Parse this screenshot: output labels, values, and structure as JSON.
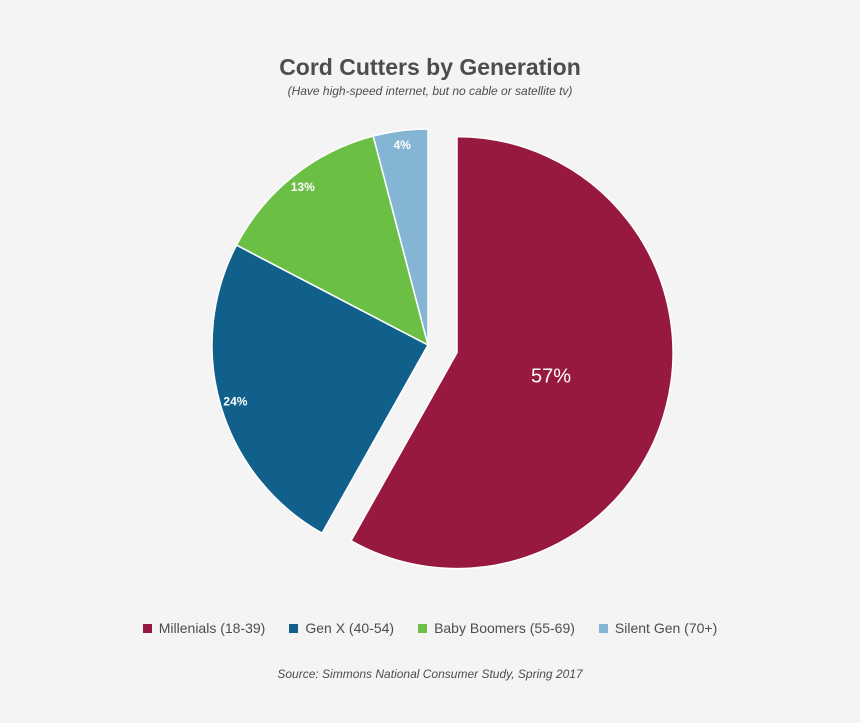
{
  "chart_data": {
    "type": "pie",
    "title": "Cord Cutters by Generation",
    "subtitle": "(Have high-speed internet, but no cable or satellite tv)",
    "source": "Source: Simmons National Consumer Study, Spring 2017",
    "legend_position": "bottom",
    "slices": [
      {
        "name": "Millenials (18-39)",
        "value": 57,
        "label": "57%",
        "color": "#98193f",
        "exploded": true
      },
      {
        "name": "Gen X (40-54)",
        "value": 24,
        "label": "24%",
        "color": "#11608c",
        "exploded": false
      },
      {
        "name": "Baby Boomers (55-69)",
        "value": 13,
        "label": "13%",
        "color": "#6cbf45",
        "exploded": false
      },
      {
        "name": "Silent Gen (70+)",
        "value": 4,
        "label": "4%",
        "color": "#84b5d4",
        "exploded": false
      }
    ]
  }
}
